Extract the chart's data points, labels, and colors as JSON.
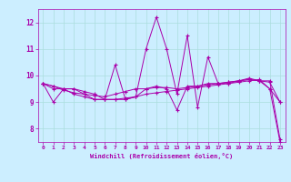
{
  "xlabel": "Windchill (Refroidissement éolien,°C)",
  "background_color": "#cceeff",
  "line_color": "#aa00aa",
  "grid_color": "#aadddd",
  "xlim": [
    -0.5,
    23.5
  ],
  "ylim": [
    7.5,
    12.5
  ],
  "yticks": [
    8,
    9,
    10,
    11,
    12
  ],
  "xticks": [
    0,
    1,
    2,
    3,
    4,
    5,
    6,
    7,
    8,
    9,
    10,
    11,
    12,
    13,
    14,
    15,
    16,
    17,
    18,
    19,
    20,
    21,
    22,
    23
  ],
  "series": [
    [
      9.7,
      9.6,
      9.5,
      9.3,
      9.2,
      9.1,
      9.1,
      9.1,
      9.15,
      9.2,
      9.3,
      9.35,
      9.4,
      9.45,
      9.5,
      9.55,
      9.6,
      9.65,
      9.7,
      9.75,
      9.8,
      9.85,
      9.5,
      7.5
    ],
    [
      9.7,
      9.6,
      9.45,
      9.35,
      9.3,
      9.25,
      9.2,
      9.3,
      9.4,
      9.5,
      9.5,
      9.55,
      9.55,
      9.5,
      9.55,
      9.6,
      9.65,
      9.7,
      9.75,
      9.8,
      9.85,
      9.8,
      9.75,
      9.0
    ],
    [
      9.7,
      9.5,
      9.5,
      9.5,
      9.3,
      9.1,
      9.1,
      10.4,
      9.1,
      9.2,
      11.0,
      12.2,
      11.0,
      9.3,
      11.5,
      8.8,
      10.7,
      9.7,
      9.7,
      9.8,
      9.9,
      9.8,
      9.5,
      9.0
    ],
    [
      9.7,
      9.0,
      9.5,
      9.5,
      9.4,
      9.3,
      9.1,
      9.1,
      9.1,
      9.2,
      9.5,
      9.6,
      9.5,
      8.7,
      9.6,
      9.6,
      9.7,
      9.7,
      9.75,
      9.8,
      9.85,
      9.8,
      9.8,
      7.6
    ]
  ]
}
